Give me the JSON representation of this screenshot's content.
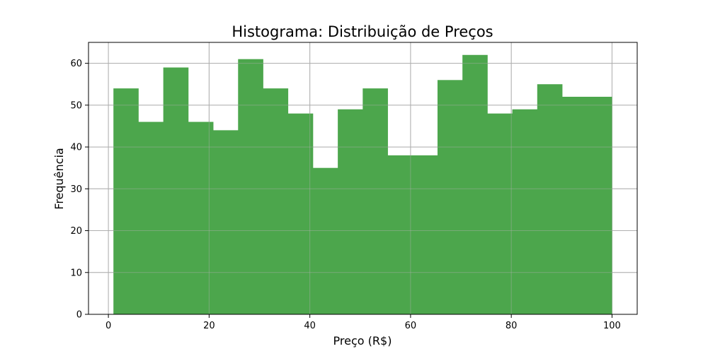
{
  "chart_data": {
    "type": "bar",
    "title": "Histograma: Distribuição de Preços",
    "xlabel": "Preço (R$)",
    "ylabel": "Frequência",
    "xlim": [
      -3.95,
      105.0
    ],
    "ylim": [
      0,
      65
    ],
    "grid": true,
    "bar_color": "#4ca64c",
    "xticks": [
      0,
      20,
      40,
      60,
      80,
      100
    ],
    "yticks": [
      0,
      10,
      20,
      30,
      40,
      50,
      60
    ],
    "bin_edges": [
      1.0,
      5.95,
      10.9,
      15.85,
      20.8,
      25.75,
      30.7,
      35.65,
      40.6,
      45.55,
      50.5,
      55.45,
      60.4,
      65.35,
      70.3,
      75.25,
      80.2,
      85.15,
      90.1,
      95.05,
      100.0
    ],
    "values": [
      54,
      46,
      59,
      46,
      44,
      61,
      54,
      48,
      35,
      49,
      54,
      38,
      38,
      56,
      62,
      48,
      49,
      55,
      52,
      52
    ]
  }
}
